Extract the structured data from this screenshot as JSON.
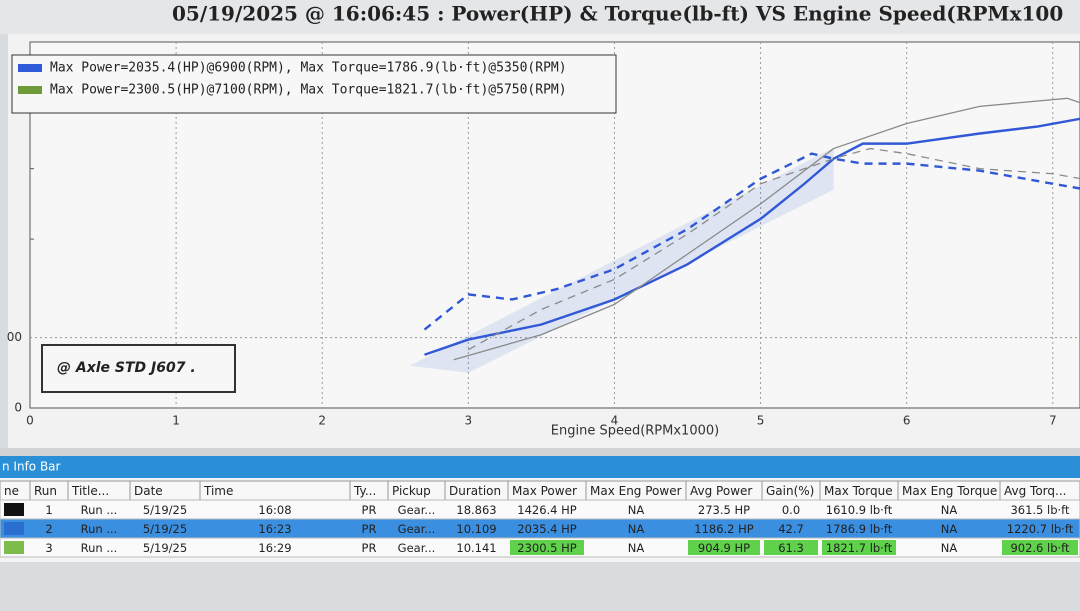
{
  "header": {
    "title": "05/19/2025 @ 16:06:45 : Power(HP) & Torque(lb-ft) VS Engine Speed(RPMx100"
  },
  "chart_data": {
    "type": "line",
    "x_label": "Engine Speed(RPMx1000)",
    "annotation": "@ Axle STD J607 .",
    "legend_entries": [
      {
        "text": "Max Power=2035.4(HP)@6900(RPM), Max Torque=1786.9(lb·ft)@5350(RPM)",
        "color": "#2f5bd8"
      },
      {
        "text": "Max Power=2300.5(HP)@7100(RPM), Max Torque=1821.7(lb·ft)@5750(RPM)",
        "color": "#6f9a3a"
      }
    ],
    "xlim": [
      0,
      7.2
    ],
    "xticks": [
      0,
      1,
      2,
      3,
      4,
      5,
      6,
      7
    ],
    "ylim": [
      0,
      2600
    ],
    "yticks": [
      0,
      {
        "value": 500,
        "label": "00"
      }
    ],
    "grid": true,
    "series": [
      {
        "color": "#3158d6",
        "dash": false,
        "x": [
          2.7,
          3.0,
          3.5,
          4.0,
          4.5,
          5.0,
          5.3,
          5.5,
          5.7,
          6.0,
          6.5,
          6.9,
          7.2
        ],
        "values": [
          378,
          486,
          593,
          771,
          1021,
          1343,
          1593,
          1771,
          1878,
          1878,
          1950,
          2000,
          2057
        ]
      },
      {
        "color": "#3158d6",
        "dash": true,
        "x": [
          2.7,
          3.0,
          3.3,
          3.6,
          4.0,
          4.5,
          5.0,
          5.35,
          5.5,
          5.7,
          6.0,
          6.5,
          7.0,
          7.2
        ],
        "values": [
          557,
          807,
          771,
          843,
          986,
          1271,
          1628,
          1807,
          1771,
          1736,
          1736,
          1686,
          1593,
          1557
        ]
      },
      {
        "color": "#8a8a8a",
        "dash": false,
        "x": [
          2.9,
          3.5,
          4.0,
          4.5,
          5.0,
          5.5,
          6.0,
          6.5,
          7.1,
          7.2
        ],
        "values": [
          343,
          521,
          736,
          1093,
          1450,
          1843,
          2021,
          2143,
          2200,
          2164
        ]
      },
      {
        "color": "#8a8a8a",
        "dash": true,
        "x": [
          3.0,
          3.5,
          4.0,
          4.5,
          5.0,
          5.5,
          5.75,
          6.0,
          6.5,
          7.0,
          7.2
        ],
        "values": [
          414,
          700,
          914,
          1236,
          1593,
          1771,
          1843,
          1807,
          1700,
          1664,
          1628
        ]
      }
    ]
  },
  "info_bar": {
    "title": "n Info Bar"
  },
  "table": {
    "columns": [
      "ne",
      "Run",
      "Title...",
      "Date",
      "Time",
      "Ty...",
      "Pickup",
      "Duration",
      "Max Power",
      "Max Eng Power",
      "Avg Power",
      "Gain(%)",
      "Max Torque",
      "Max Eng Torque",
      "Avg Torq..."
    ],
    "rows": [
      [
        "1",
        "Run ...",
        "5/19/25",
        "16:08",
        "PR",
        "Gear...",
        "18.863",
        "1426.4 HP",
        "NA",
        "273.5 HP",
        "0.0",
        "1610.9 lb·ft",
        "NA",
        "361.5 lb·ft"
      ],
      [
        "2",
        "Run ...",
        "5/19/25",
        "16:23",
        "PR",
        "Gear...",
        "10.109",
        "2035.4 HP",
        "NA",
        "1186.2 HP",
        "42.7",
        "1786.9 lb·ft",
        "NA",
        "1220.7 lb·ft"
      ],
      [
        "3",
        "Run ...",
        "5/19/25",
        "16:29",
        "PR",
        "Gear...",
        "10.141",
        "2300.5 HP",
        "NA",
        "904.9 HP",
        "61.3",
        "1821.7 lb·ft",
        "NA",
        "902.6 lb·ft"
      ]
    ]
  }
}
